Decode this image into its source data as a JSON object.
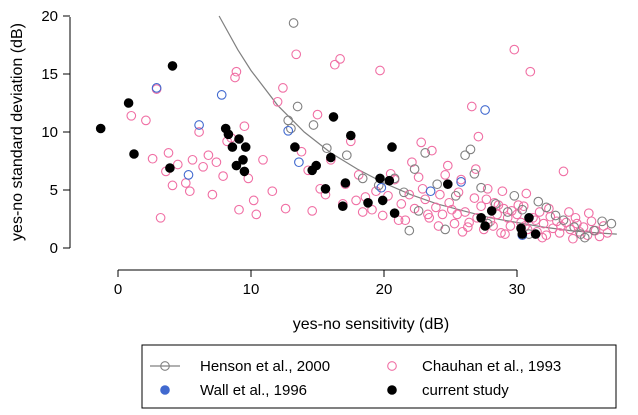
{
  "chart_data": {
    "type": "scatter",
    "title": "",
    "xlabel": "yes-no sensitivity (dB)",
    "ylabel": "yes-no standard deviation (dB)",
    "xlim": [
      -1.5,
      38.5
    ],
    "ylim": [
      -0.3,
      20
    ],
    "xticks": [
      "0",
      "10",
      "20",
      "30"
    ],
    "yticks": [
      "0",
      "5",
      "10",
      "15",
      "20"
    ],
    "grid": false,
    "legend_position": "bottom",
    "fit_curve": {
      "color": "#808080",
      "points": [
        [
          7.6,
          20
        ],
        [
          9,
          17.1
        ],
        [
          10,
          15.3
        ],
        [
          12,
          12.3
        ],
        [
          14,
          10
        ],
        [
          16,
          8.2
        ],
        [
          18,
          6.8
        ],
        [
          20,
          5.6
        ],
        [
          22,
          4.6
        ],
        [
          24,
          3.8
        ],
        [
          26,
          3.2
        ],
        [
          28,
          2.6
        ],
        [
          30,
          2.2
        ],
        [
          32,
          1.8
        ],
        [
          34,
          1.5
        ],
        [
          36,
          1.3
        ],
        [
          37.5,
          1.2
        ]
      ]
    },
    "series": [
      {
        "name": "Henson et al., 2000",
        "marker": "open-circle",
        "color": "#808080",
        "points": [
          [
            13.2,
            19.4
          ],
          [
            12.8,
            11
          ],
          [
            13.5,
            12.2
          ],
          [
            13,
            10.3
          ],
          [
            14.7,
            10.6
          ],
          [
            15.7,
            8.6
          ],
          [
            17.2,
            8
          ],
          [
            18.4,
            6
          ],
          [
            19.6,
            5.4
          ],
          [
            20.8,
            6
          ],
          [
            21.5,
            4.8
          ],
          [
            22.3,
            6.8
          ],
          [
            23.1,
            8.2
          ],
          [
            24,
            5.5
          ],
          [
            25.4,
            4.5
          ],
          [
            26.1,
            8
          ],
          [
            26.5,
            8.5
          ],
          [
            26.8,
            6.4
          ],
          [
            27.3,
            5.2
          ],
          [
            28.4,
            3.8
          ],
          [
            29.8,
            4.5
          ],
          [
            30.4,
            3.3
          ],
          [
            31.6,
            4
          ],
          [
            32.2,
            3.5
          ],
          [
            33.5,
            2.4
          ],
          [
            34.3,
            1.8
          ],
          [
            35.1,
            0.9
          ],
          [
            35.8,
            1.5
          ],
          [
            36.4,
            2.3
          ],
          [
            37.1,
            2.1
          ],
          [
            22.6,
            3.2
          ],
          [
            27.8,
            2.1
          ],
          [
            24.6,
            1.6
          ],
          [
            21.9,
            1.5
          ],
          [
            32.9,
            2.8
          ],
          [
            30.9,
            1.2
          ],
          [
            29.3,
            3.1
          ],
          [
            34.8,
            1.2
          ]
        ]
      },
      {
        "name": "Wall et al., 1996",
        "marker": "filled-circle",
        "color": "#4169cf",
        "points": [
          [
            2.9,
            13.8
          ],
          [
            5.3,
            6.3
          ],
          [
            6.1,
            10.6
          ],
          [
            7.8,
            13.2
          ],
          [
            12.8,
            10.1
          ],
          [
            13.6,
            7.4
          ],
          [
            19.8,
            5.2
          ],
          [
            23.5,
            4.9
          ],
          [
            25.8,
            5.7
          ],
          [
            27.6,
            11.9
          ],
          [
            30.4,
            1.1
          ]
        ]
      },
      {
        "name": "Chauhan et al., 1993",
        "marker": "open-circle",
        "color": "#f06fa4",
        "points": [
          [
            1,
            11.4
          ],
          [
            2.1,
            11
          ],
          [
            2.6,
            7.7
          ],
          [
            2.9,
            13.7
          ],
          [
            3.2,
            2.6
          ],
          [
            3.6,
            6.6
          ],
          [
            3.8,
            8.2
          ],
          [
            4.1,
            5.4
          ],
          [
            4.5,
            7.2
          ],
          [
            5.1,
            5.6
          ],
          [
            5.4,
            4.9
          ],
          [
            5.6,
            7.6
          ],
          [
            6.1,
            10
          ],
          [
            6.4,
            7
          ],
          [
            6.8,
            8
          ],
          [
            7.1,
            4.6
          ],
          [
            7.4,
            7.4
          ],
          [
            7.9,
            6.2
          ],
          [
            8.2,
            9.2
          ],
          [
            8.5,
            9.5
          ],
          [
            8.8,
            14.7
          ],
          [
            8.9,
            15.2
          ],
          [
            9.1,
            3.3
          ],
          [
            9.5,
            10.5
          ],
          [
            9.8,
            6
          ],
          [
            10.2,
            4.1
          ],
          [
            10.4,
            2.9
          ],
          [
            10.9,
            7.6
          ],
          [
            11.6,
            4.9
          ],
          [
            12,
            12.6
          ],
          [
            12.4,
            13.8
          ],
          [
            12.6,
            3.4
          ],
          [
            13.4,
            16.7
          ],
          [
            13.8,
            8.3
          ],
          [
            14.3,
            6.7
          ],
          [
            14.6,
            3.2
          ],
          [
            15,
            11.5
          ],
          [
            15.2,
            5.1
          ],
          [
            15.6,
            4.6
          ],
          [
            16,
            7.6
          ],
          [
            16.3,
            15.8
          ],
          [
            16.7,
            16.3
          ],
          [
            16.9,
            3.8
          ],
          [
            17.1,
            5.5
          ],
          [
            17.5,
            9.2
          ],
          [
            17.9,
            4.1
          ],
          [
            18.1,
            6.3
          ],
          [
            18.6,
            4.4
          ],
          [
            19.1,
            3.3
          ],
          [
            19.7,
            15.3
          ],
          [
            19.9,
            2.8
          ],
          [
            20.3,
            4.5
          ],
          [
            20.5,
            6.4
          ],
          [
            20.8,
            5.9
          ],
          [
            21.3,
            3.8
          ],
          [
            21.6,
            2.4
          ],
          [
            21.9,
            4.6
          ],
          [
            22.1,
            7.4
          ],
          [
            22.3,
            3.4
          ],
          [
            22.6,
            6.1
          ],
          [
            22.9,
            5.1
          ],
          [
            23.1,
            4.2
          ],
          [
            23.4,
            2.6
          ],
          [
            23.6,
            8.4
          ],
          [
            23.9,
            3.5
          ],
          [
            24.2,
            4.6
          ],
          [
            24.4,
            2.9
          ],
          [
            24.6,
            6.3
          ],
          [
            24.9,
            3.9
          ],
          [
            25.1,
            3.3
          ],
          [
            25.3,
            2.1
          ],
          [
            25.6,
            4.8
          ],
          [
            25.8,
            5.9
          ],
          [
            26.1,
            3.1
          ],
          [
            26.3,
            1.8
          ],
          [
            26.6,
            12.2
          ],
          [
            26.8,
            4.3
          ],
          [
            27,
            2.6
          ],
          [
            27.3,
            3.6
          ],
          [
            27.5,
            1.6
          ],
          [
            27.8,
            5.1
          ],
          [
            28,
            2.3
          ],
          [
            28.3,
            3.9
          ],
          [
            28.5,
            2.9
          ],
          [
            28.8,
            1.3
          ],
          [
            29,
            3.4
          ],
          [
            29.3,
            2.6
          ],
          [
            29.5,
            1.9
          ],
          [
            29.8,
            17.1
          ],
          [
            30,
            2.9
          ],
          [
            30.3,
            2.2
          ],
          [
            30.5,
            3.6
          ],
          [
            30.8,
            1.6
          ],
          [
            31,
            15.2
          ],
          [
            31.2,
            2.6
          ],
          [
            31.5,
            1.4
          ],
          [
            31.7,
            3.1
          ],
          [
            32,
            2.1
          ],
          [
            32.2,
            1.1
          ],
          [
            32.5,
            2.7
          ],
          [
            32.7,
            1.7
          ],
          [
            33,
            2.3
          ],
          [
            33.2,
            1.3
          ],
          [
            33.5,
            6.6
          ],
          [
            33.7,
            2.2
          ],
          [
            34,
            1.6
          ],
          [
            34.2,
            0.8
          ],
          [
            34.5,
            2.1
          ],
          [
            34.7,
            1.4
          ],
          [
            35,
            1.8
          ],
          [
            35.3,
            1.1
          ],
          [
            35.6,
            2.3
          ],
          [
            35.9,
            1.5
          ],
          [
            36.2,
            1
          ],
          [
            36.5,
            1.9
          ],
          [
            36.8,
            1.3
          ],
          [
            26.9,
            6.8
          ],
          [
            28.9,
            4.9
          ],
          [
            30.7,
            4.7
          ],
          [
            24.8,
            7.1
          ],
          [
            22.8,
            9.1
          ],
          [
            27.1,
            9.6
          ],
          [
            25.5,
            2.9
          ],
          [
            29.1,
            1.2
          ],
          [
            31.9,
            0.9
          ],
          [
            33.9,
            3.1
          ],
          [
            34.4,
            2.6
          ],
          [
            35.4,
            3
          ],
          [
            28.6,
            3.7
          ],
          [
            29.6,
            3.2
          ],
          [
            30.1,
            3.7
          ],
          [
            32.4,
            3.4
          ],
          [
            33.3,
            1.9
          ],
          [
            31.4,
            2.4
          ],
          [
            30.6,
            1.9
          ],
          [
            28.2,
            1.9
          ],
          [
            26.4,
            2.2
          ],
          [
            27.7,
            4.2
          ],
          [
            21.1,
            2.4
          ],
          [
            23.3,
            2.9
          ],
          [
            24.1,
            1.9
          ],
          [
            25.9,
            1.4
          ],
          [
            19.4,
            4.9
          ],
          [
            18.4,
            3.1
          ]
        ]
      },
      {
        "name": "current study",
        "marker": "filled-circle",
        "color": "#000000",
        "points": [
          [
            -1.3,
            10.3
          ],
          [
            0.8,
            12.5
          ],
          [
            1.2,
            8.1
          ],
          [
            3.9,
            6.9
          ],
          [
            4.1,
            15.7
          ],
          [
            8.1,
            10.3
          ],
          [
            8.3,
            9.8
          ],
          [
            8.6,
            8.7
          ],
          [
            8.9,
            7.1
          ],
          [
            9.1,
            9.4
          ],
          [
            9.4,
            7.6
          ],
          [
            9.6,
            8.7
          ],
          [
            9.5,
            6.6
          ],
          [
            13.3,
            8.7
          ],
          [
            14.6,
            6.7
          ],
          [
            14.9,
            7.1
          ],
          [
            15.6,
            5.1
          ],
          [
            16,
            7.8
          ],
          [
            16.2,
            11.3
          ],
          [
            16.9,
            3.6
          ],
          [
            17.1,
            5.6
          ],
          [
            17.5,
            9.7
          ],
          [
            18.8,
            3.9
          ],
          [
            19.7,
            6
          ],
          [
            19.9,
            4.1
          ],
          [
            20.4,
            5.8
          ],
          [
            20.6,
            8.7
          ],
          [
            20.8,
            3
          ],
          [
            24.8,
            5.5
          ],
          [
            27.3,
            2.6
          ],
          [
            27.6,
            1.9
          ],
          [
            28.1,
            3.2
          ],
          [
            30.3,
            1.7
          ],
          [
            30.4,
            1.2
          ],
          [
            30.9,
            2.6
          ],
          [
            31.4,
            1.2
          ]
        ]
      }
    ]
  }
}
